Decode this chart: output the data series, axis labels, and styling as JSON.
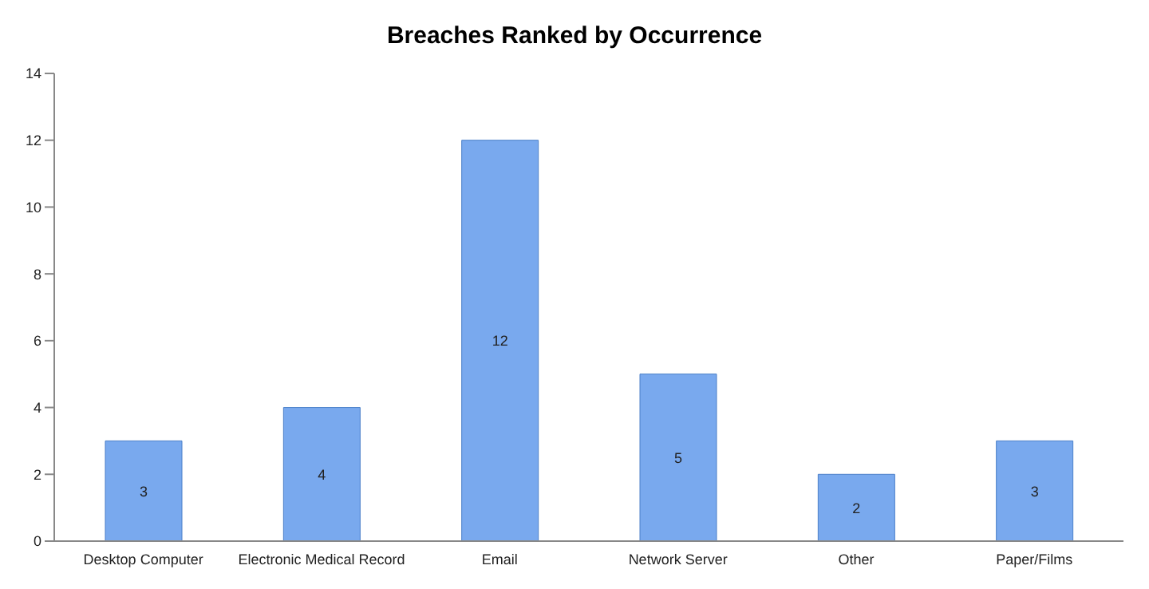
{
  "chart_data": {
    "type": "bar",
    "title": "Breaches Ranked by Occurrence",
    "categories": [
      "Desktop Computer",
      "Electronic Medical Record",
      "Email",
      "Network Server",
      "Other",
      "Paper/Films"
    ],
    "values": [
      3,
      4,
      12,
      5,
      2,
      3
    ],
    "color": "#79a9ee",
    "ylim": [
      0,
      14
    ],
    "yticks": [
      0,
      2,
      4,
      6,
      8,
      10,
      12,
      14
    ],
    "grid": false,
    "legend": false,
    "data_labels": true
  }
}
